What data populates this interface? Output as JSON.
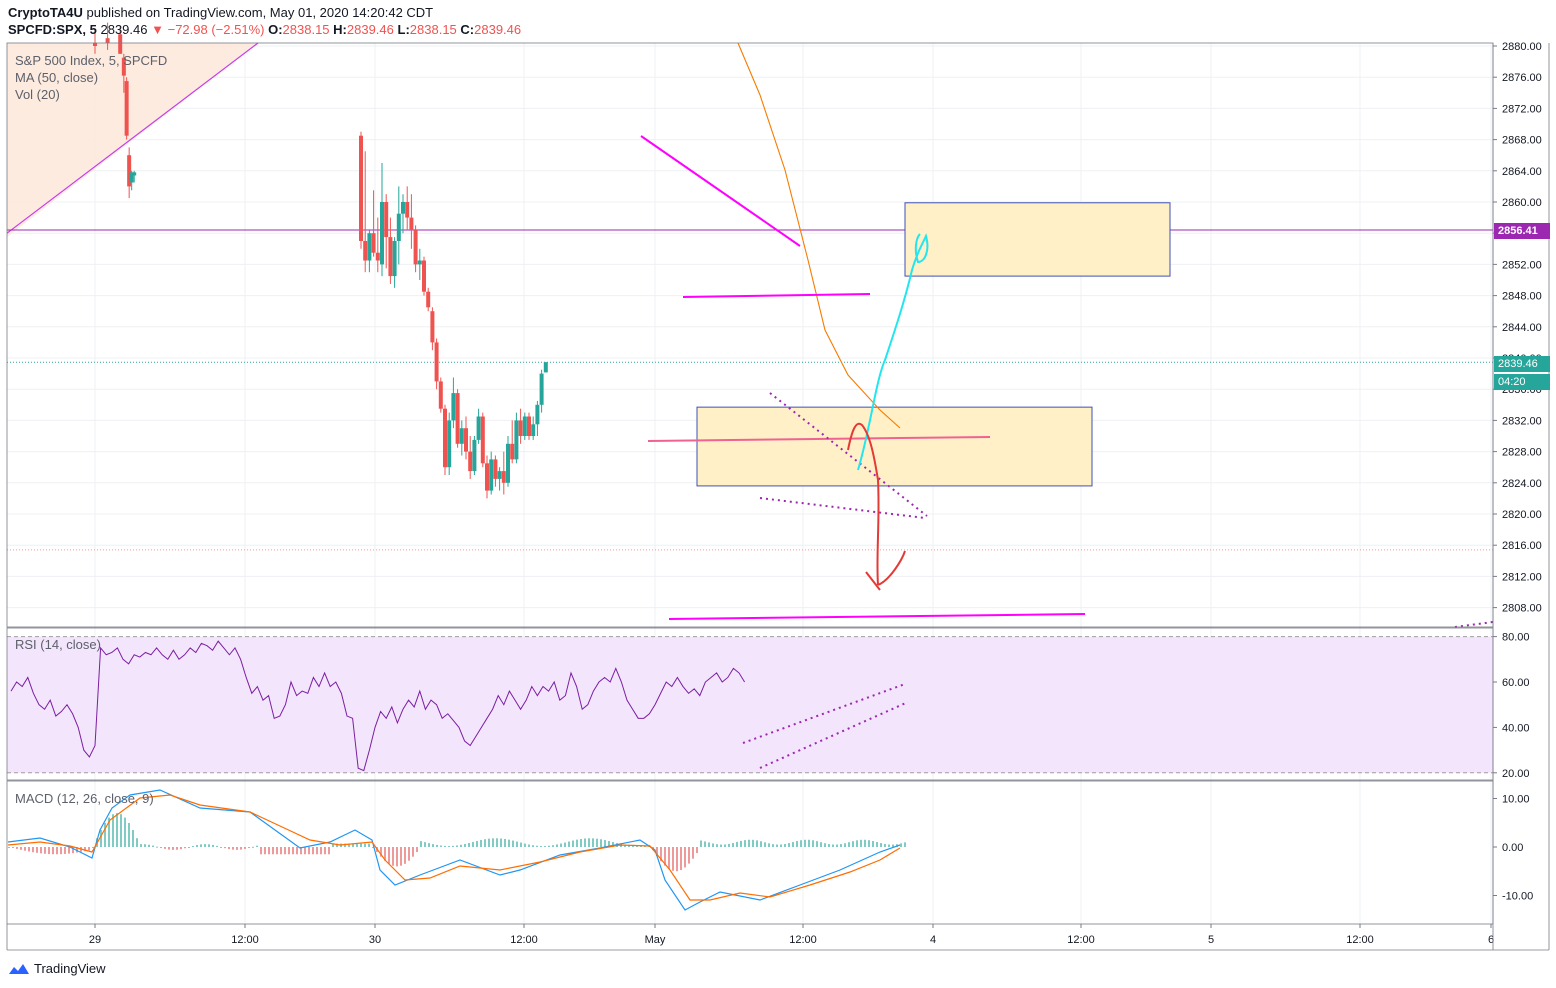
{
  "header": {
    "author": "CryptoTA4U",
    "published": " published on TradingView.com, May 01, 2020 14:20:42 CDT",
    "symbol": "SPCFD:SPX, 5",
    "last": "2839.46",
    "change": "−72.98 (−2.51%)",
    "o_label": "O:",
    "o": "2838.15",
    "h_label": "H:",
    "h": "2839.46",
    "l_label": "L:",
    "l": "2838.15",
    "c_label": "C:",
    "c": "2839.46"
  },
  "legend": {
    "title": "S&P 500 Index, 5, SPCFD",
    "ma": "MA (50, close)",
    "vol": "Vol (20)",
    "rsi": "RSI (14, close)",
    "macd": "MACD (12, 26, close, 9)"
  },
  "price_tags": {
    "level": "2856.41",
    "last": "2839.46",
    "timer": "04:20"
  },
  "footer": {
    "brand": "TradingView"
  },
  "colors": {
    "up": "#26a69a",
    "down": "#ef5350",
    "ma": "#f57c00",
    "annot_magenta": "#ff00ff",
    "annot_purple": "#9c27b0",
    "rsi_line": "#7b1fa2",
    "rsi_band": "#f3e5fc",
    "macd_line": "#2196f3",
    "signal_line": "#ff6d00",
    "zone_fill": "#fff0c8",
    "zone_border": "#3f51b5",
    "cyan": "#22e6ee",
    "red_arrow": "#e53935",
    "level_line": "#9c27b0",
    "last_tag": "#26a69a"
  },
  "chart_data": {
    "type": "candlestick",
    "price_axis": {
      "ticks": [
        2880,
        2876,
        2872,
        2868,
        2864,
        2860,
        2856,
        2852,
        2848,
        2844,
        2840,
        2836,
        2832,
        2828,
        2824,
        2820,
        2816,
        2812,
        2808
      ],
      "tick_labels": [
        "2880.00",
        "2876.00",
        "2872.00",
        "2868.00",
        "2864.00",
        "2860.00",
        "2856.00",
        "2852.00",
        "2848.00",
        "2844.00",
        "2840.00",
        "2836.00",
        "2832.00",
        "2828.00",
        "2824.00",
        "2820.00",
        "2816.00",
        "2812.00",
        "2808.00"
      ],
      "range": [
        2806.5,
        2881
      ]
    },
    "time_axis": {
      "labels": [
        "29",
        "12:00",
        "30",
        "12:00",
        "May",
        "12:00",
        "4",
        "12:00",
        "5",
        "12:00",
        "6"
      ]
    },
    "candles": [
      {
        "t": 0.0,
        "o": 2880.4,
        "h": 2882.0,
        "l": 2879.0,
        "c": 2880.0
      },
      {
        "t": 0.045,
        "o": 2881.0,
        "h": 2883.0,
        "l": 2879.5,
        "c": 2880.4
      },
      {
        "t": 0.09,
        "o": 2881.5,
        "h": 2882.6,
        "l": 2879.0,
        "c": 2879.0
      },
      {
        "t": 0.103,
        "o": 2878.5,
        "h": 2879.0,
        "l": 2874.0,
        "c": 2876.2
      },
      {
        "t": 0.113,
        "o": 2875.5,
        "h": 2876.0,
        "l": 2868.0,
        "c": 2868.5
      },
      {
        "t": 0.122,
        "o": 2866.0,
        "h": 2867.0,
        "l": 2860.5,
        "c": 2862.0
      },
      {
        "t": 0.131,
        "o": 2862.5,
        "h": 2864.0,
        "l": 2861.5,
        "c": 2863.8
      },
      {
        "t": 0.14,
        "o": 2863.4,
        "h": 2864.0,
        "l": 2862.5,
        "c": 2863.8
      },
      {
        "t": 0.95,
        "o": 2868.5,
        "h": 2869.0,
        "l": 2854.0,
        "c": 2855.0
      },
      {
        "t": 0.965,
        "o": 2855.0,
        "h": 2866.5,
        "l": 2851.0,
        "c": 2852.5
      },
      {
        "t": 0.98,
        "o": 2852.5,
        "h": 2856.5,
        "l": 2851.0,
        "c": 2856.0
      },
      {
        "t": 0.995,
        "o": 2856.0,
        "h": 2861.5,
        "l": 2853.0,
        "c": 2853.5
      },
      {
        "t": 1.01,
        "o": 2853.5,
        "h": 2858.0,
        "l": 2851.0,
        "c": 2852.5
      },
      {
        "t": 1.025,
        "o": 2852.0,
        "h": 2865.0,
        "l": 2850.5,
        "c": 2860.0
      },
      {
        "t": 1.04,
        "o": 2860.0,
        "h": 2861.0,
        "l": 2851.5,
        "c": 2855.5
      },
      {
        "t": 1.055,
        "o": 2855.5,
        "h": 2858.0,
        "l": 2849.5,
        "c": 2850.5
      },
      {
        "t": 1.07,
        "o": 2850.5,
        "h": 2855.5,
        "l": 2849.0,
        "c": 2855.0
      },
      {
        "t": 1.085,
        "o": 2855.0,
        "h": 2862.0,
        "l": 2852.0,
        "c": 2858.5
      },
      {
        "t": 1.1,
        "o": 2858.5,
        "h": 2861.0,
        "l": 2856.0,
        "c": 2860.0
      },
      {
        "t": 1.115,
        "o": 2860.0,
        "h": 2862.0,
        "l": 2856.5,
        "c": 2858.0
      },
      {
        "t": 1.13,
        "o": 2858.0,
        "h": 2861.0,
        "l": 2854.0,
        "c": 2856.5
      },
      {
        "t": 1.145,
        "o": 2856.5,
        "h": 2857.0,
        "l": 2851.0,
        "c": 2852.0
      },
      {
        "t": 1.16,
        "o": 2852.0,
        "h": 2854.0,
        "l": 2850.0,
        "c": 2852.5
      },
      {
        "t": 1.175,
        "o": 2852.5,
        "h": 2853.0,
        "l": 2848.0,
        "c": 2848.5
      },
      {
        "t": 1.19,
        "o": 2848.5,
        "h": 2849.0,
        "l": 2846.0,
        "c": 2846.5
      },
      {
        "t": 1.205,
        "o": 2846.0,
        "h": 2846.5,
        "l": 2841.0,
        "c": 2842.0
      },
      {
        "t": 1.22,
        "o": 2842.0,
        "h": 2842.5,
        "l": 2836.0,
        "c": 2837.0
      },
      {
        "t": 1.235,
        "o": 2837.0,
        "h": 2837.5,
        "l": 2833.0,
        "c": 2833.5
      },
      {
        "t": 1.25,
        "o": 2833.5,
        "h": 2834.0,
        "l": 2825.0,
        "c": 2826.0
      },
      {
        "t": 1.265,
        "o": 2826.0,
        "h": 2833.0,
        "l": 2825.0,
        "c": 2832.0
      },
      {
        "t": 1.28,
        "o": 2832.0,
        "h": 2837.5,
        "l": 2831.0,
        "c": 2835.5
      },
      {
        "t": 1.295,
        "o": 2835.5,
        "h": 2836.0,
        "l": 2828.5,
        "c": 2829.0
      },
      {
        "t": 1.31,
        "o": 2829.0,
        "h": 2832.0,
        "l": 2827.5,
        "c": 2831.0
      },
      {
        "t": 1.325,
        "o": 2831.0,
        "h": 2832.5,
        "l": 2827.0,
        "c": 2828.0
      },
      {
        "t": 1.34,
        "o": 2828.0,
        "h": 2830.0,
        "l": 2824.5,
        "c": 2825.5
      },
      {
        "t": 1.355,
        "o": 2825.5,
        "h": 2830.0,
        "l": 2825.0,
        "c": 2829.5
      },
      {
        "t": 1.37,
        "o": 2829.5,
        "h": 2833.5,
        "l": 2829.0,
        "c": 2832.5
      },
      {
        "t": 1.385,
        "o": 2832.5,
        "h": 2833.0,
        "l": 2826.0,
        "c": 2826.5
      },
      {
        "t": 1.4,
        "o": 2826.5,
        "h": 2827.5,
        "l": 2822.0,
        "c": 2823.0
      },
      {
        "t": 1.415,
        "o": 2823.0,
        "h": 2828.0,
        "l": 2822.5,
        "c": 2827.0
      },
      {
        "t": 1.43,
        "o": 2827.0,
        "h": 2827.5,
        "l": 2823.5,
        "c": 2824.5
      },
      {
        "t": 1.445,
        "o": 2824.5,
        "h": 2826.0,
        "l": 2823.0,
        "c": 2825.5
      },
      {
        "t": 1.46,
        "o": 2825.5,
        "h": 2828.0,
        "l": 2822.5,
        "c": 2824.0
      },
      {
        "t": 1.475,
        "o": 2824.0,
        "h": 2830.0,
        "l": 2823.5,
        "c": 2829.0
      },
      {
        "t": 1.49,
        "o": 2829.0,
        "h": 2832.0,
        "l": 2826.5,
        "c": 2827.0
      },
      {
        "t": 1.505,
        "o": 2827.0,
        "h": 2833.0,
        "l": 2826.5,
        "c": 2832.0
      },
      {
        "t": 1.52,
        "o": 2832.0,
        "h": 2833.5,
        "l": 2829.0,
        "c": 2830.0
      },
      {
        "t": 1.535,
        "o": 2830.0,
        "h": 2833.0,
        "l": 2829.5,
        "c": 2832.5
      },
      {
        "t": 1.55,
        "o": 2832.5,
        "h": 2833.0,
        "l": 2829.5,
        "c": 2830.0
      },
      {
        "t": 1.565,
        "o": 2830.0,
        "h": 2832.5,
        "l": 2829.5,
        "c": 2831.5
      },
      {
        "t": 1.58,
        "o": 2831.5,
        "h": 2834.5,
        "l": 2830.0,
        "c": 2834.0
      },
      {
        "t": 1.595,
        "o": 2834.0,
        "h": 2838.5,
        "l": 2833.0,
        "c": 2838.0
      },
      {
        "t": 1.61,
        "o": 2838.15,
        "h": 2839.46,
        "l": 2838.15,
        "c": 2839.46
      }
    ],
    "ma50": [
      [
        1.28,
        2881.5
      ],
      [
        1.36,
        2870.0
      ],
      [
        1.45,
        2858.0
      ],
      [
        1.54,
        2844.0
      ],
      [
        1.62,
        2838.0
      ],
      [
        1.7,
        2835.0
      ],
      [
        1.76,
        2832.0
      ],
      [
        1.82,
        2830.5
      ]
    ],
    "rsi": {
      "ticks": [
        80,
        60,
        40,
        20
      ],
      "tick_labels": [
        "80.00",
        "60.00",
        "40.00",
        "20.00"
      ],
      "band": [
        20,
        80
      ],
      "values": [
        [
          0.0,
          56
        ],
        [
          0.02,
          60
        ],
        [
          0.04,
          58
        ],
        [
          0.06,
          62
        ],
        [
          0.08,
          55
        ],
        [
          0.1,
          50
        ],
        [
          0.12,
          48
        ],
        [
          0.14,
          52
        ],
        [
          0.16,
          45
        ],
        [
          0.18,
          47
        ],
        [
          0.2,
          50
        ],
        [
          0.22,
          46
        ],
        [
          0.24,
          40
        ],
        [
          0.26,
          30
        ],
        [
          0.28,
          27
        ],
        [
          0.3,
          32
        ],
        [
          0.32,
          75
        ],
        [
          0.34,
          72
        ],
        [
          0.36,
          73
        ],
        [
          0.38,
          75
        ],
        [
          0.4,
          70
        ],
        [
          0.42,
          68
        ],
        [
          0.44,
          72
        ],
        [
          0.46,
          71
        ],
        [
          0.48,
          73
        ],
        [
          0.5,
          72
        ],
        [
          0.52,
          75
        ],
        [
          0.54,
          72
        ],
        [
          0.56,
          70
        ],
        [
          0.58,
          74
        ],
        [
          0.6,
          70
        ],
        [
          0.62,
          72
        ],
        [
          0.64,
          75
        ],
        [
          0.66,
          73
        ],
        [
          0.68,
          77
        ],
        [
          0.7,
          76
        ],
        [
          0.72,
          74
        ],
        [
          0.74,
          78
        ],
        [
          0.76,
          75
        ],
        [
          0.78,
          72
        ],
        [
          0.8,
          75
        ],
        [
          0.82,
          70
        ],
        [
          0.84,
          62
        ],
        [
          0.86,
          55
        ],
        [
          0.88,
          58
        ],
        [
          0.9,
          52
        ],
        [
          0.92,
          54
        ],
        [
          0.94,
          44
        ],
        [
          0.96,
          45
        ],
        [
          0.98,
          50
        ],
        [
          1.0,
          60
        ],
        [
          1.02,
          54
        ],
        [
          1.04,
          56
        ],
        [
          1.06,
          55
        ],
        [
          1.08,
          62
        ],
        [
          1.1,
          58
        ],
        [
          1.12,
          64
        ],
        [
          1.14,
          58
        ],
        [
          1.16,
          60
        ],
        [
          1.18,
          55
        ],
        [
          1.2,
          45
        ],
        [
          1.22,
          44
        ],
        [
          1.24,
          22
        ],
        [
          1.26,
          21
        ],
        [
          1.28,
          30
        ],
        [
          1.3,
          40
        ],
        [
          1.32,
          47
        ],
        [
          1.34,
          44
        ],
        [
          1.36,
          49
        ],
        [
          1.38,
          42
        ],
        [
          1.4,
          48
        ],
        [
          1.42,
          52
        ],
        [
          1.44,
          49
        ],
        [
          1.46,
          56
        ],
        [
          1.48,
          48
        ],
        [
          1.5,
          52
        ],
        [
          1.52,
          50
        ],
        [
          1.54,
          44
        ],
        [
          1.56,
          46
        ],
        [
          1.58,
          43
        ],
        [
          1.6,
          40
        ],
        [
          1.62,
          34
        ],
        [
          1.64,
          32
        ],
        [
          1.66,
          36
        ],
        [
          1.68,
          40
        ],
        [
          1.7,
          44
        ],
        [
          1.72,
          48
        ],
        [
          1.74,
          54
        ],
        [
          1.76,
          50
        ],
        [
          1.78,
          56
        ],
        [
          1.8,
          52
        ],
        [
          1.82,
          48
        ],
        [
          1.84,
          52
        ],
        [
          1.86,
          58
        ],
        [
          1.88,
          54
        ],
        [
          1.9,
          58
        ],
        [
          1.92,
          56
        ],
        [
          1.94,
          60
        ],
        [
          1.96,
          52
        ],
        [
          1.98,
          54
        ],
        [
          2.0,
          64
        ],
        [
          2.02,
          58
        ],
        [
          2.04,
          48
        ],
        [
          2.06,
          50
        ],
        [
          2.08,
          56
        ],
        [
          2.1,
          60
        ],
        [
          2.12,
          62
        ],
        [
          2.14,
          60
        ],
        [
          2.16,
          66
        ],
        [
          2.18,
          60
        ],
        [
          2.2,
          52
        ],
        [
          2.22,
          48
        ],
        [
          2.24,
          44
        ],
        [
          2.26,
          44
        ],
        [
          2.28,
          46
        ],
        [
          2.3,
          50
        ],
        [
          2.32,
          55
        ],
        [
          2.34,
          60
        ],
        [
          2.36,
          58
        ],
        [
          2.38,
          62
        ],
        [
          2.4,
          58
        ],
        [
          2.42,
          55
        ],
        [
          2.44,
          57
        ],
        [
          2.46,
          54
        ],
        [
          2.48,
          60
        ],
        [
          2.5,
          62
        ],
        [
          2.52,
          64
        ],
        [
          2.54,
          60
        ],
        [
          2.56,
          62
        ],
        [
          2.58,
          66
        ],
        [
          2.6,
          64
        ],
        [
          2.62,
          60
        ]
      ]
    },
    "macd": {
      "ticks": [
        10,
        0,
        -10
      ],
      "tick_labels": [
        "10.00",
        "0.00",
        "-10.00"
      ],
      "range": [
        -16,
        12
      ]
    }
  }
}
